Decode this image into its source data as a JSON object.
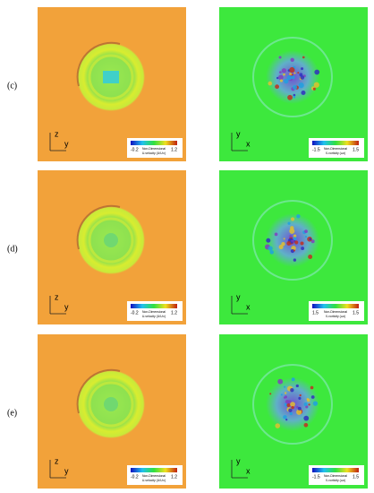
{
  "panels": [
    {
      "label": "(c)",
      "left": {
        "axis_vertical": "z",
        "axis_horizontal": "y",
        "colorbar": {
          "min": "-0.2",
          "max": "1.2",
          "title": "Non-Dimensional",
          "quantity": "U-velocity (U/U∞)"
        }
      },
      "right": {
        "axis_vertical": "y",
        "axis_horizontal": "x",
        "colorbar": {
          "min": "-1.5",
          "max": "1.5",
          "title": "Non-Dimensional",
          "quantity": "X-vorticity (ωx)"
        }
      }
    },
    {
      "label": "(d)",
      "left": {
        "axis_vertical": "z",
        "axis_horizontal": "y",
        "colorbar": {
          "min": "-0.2",
          "max": "1.2",
          "title": "Non-Dimensional",
          "quantity": "U-velocity (U/U∞)"
        }
      },
      "right": {
        "axis_vertical": "y",
        "axis_horizontal": "x",
        "colorbar": {
          "min": "1.5",
          "max": "1.5",
          "title": "Non-Dimensional",
          "quantity": "X-vorticity (ωx)"
        }
      }
    },
    {
      "label": "(e)",
      "left": {
        "axis_vertical": "z",
        "axis_horizontal": "y",
        "colorbar": {
          "min": "-0.2",
          "max": "1.2",
          "title": "Non-Dimensional",
          "quantity": "U-velocity (U/U∞)"
        }
      },
      "right": {
        "axis_vertical": "y",
        "axis_horizontal": "x",
        "colorbar": {
          "min": "-1.5",
          "max": "1.5",
          "title": "Non-Dimensional",
          "quantity": "X-vorticity (ωx)"
        }
      }
    }
  ]
}
